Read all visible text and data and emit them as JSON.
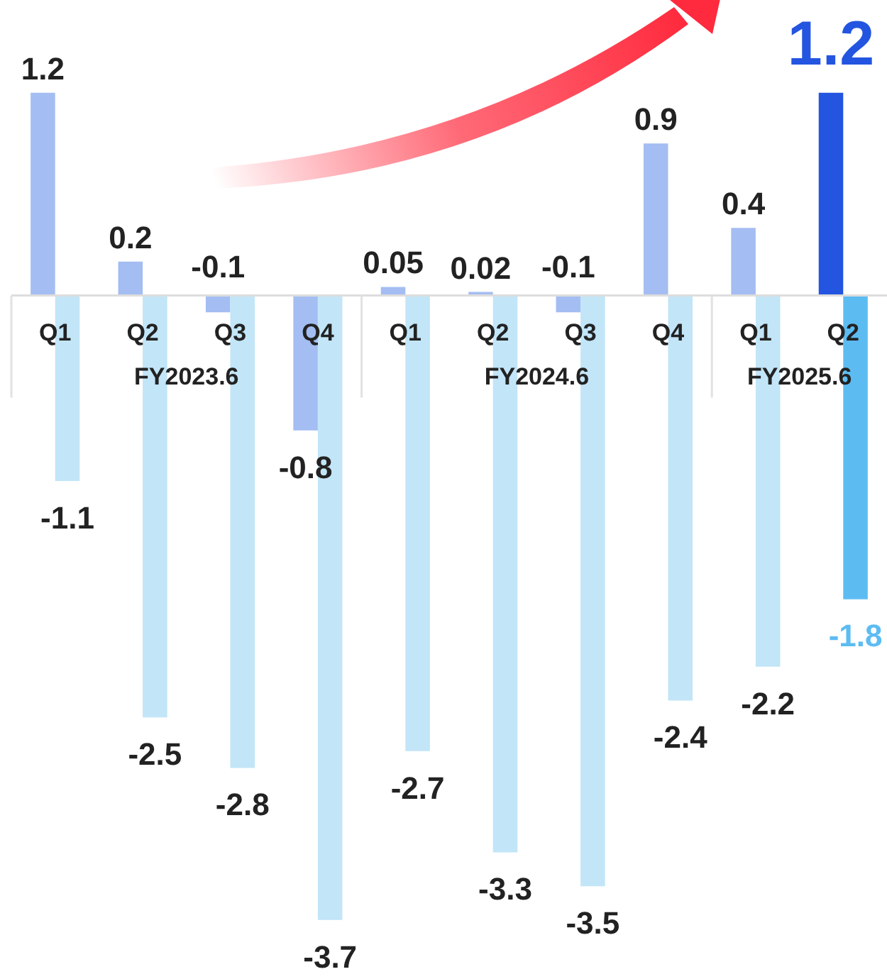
{
  "chart_data": {
    "type": "bar",
    "data_labels": true,
    "categories": [
      "Q1",
      "Q2",
      "Q3",
      "Q4",
      "Q1",
      "Q2",
      "Q3",
      "Q4",
      "Q1",
      "Q2"
    ],
    "annotations": [
      "FY2023.6",
      "FY2024.6",
      "FY2025.6"
    ],
    "series": [
      {
        "colors": [
          "#a4bdf2",
          "#a4bdf2",
          "#a4bdf2",
          "#a4bdf2",
          "#a4bdf2",
          "#a4bdf2",
          "#a4bdf2",
          "#a4bdf2",
          "#a4bdf2",
          "#2355e0"
        ],
        "values": [
          1.2,
          0.2,
          -0.1,
          -0.8,
          0.05,
          0.02,
          -0.1,
          0.9,
          0.4,
          1.2
        ]
      },
      {
        "colors": [
          "#c2e5f8",
          "#c2e5f8",
          "#c2e5f8",
          "#c2e5f8",
          "#c2e5f8",
          "#c2e5f8",
          "#c2e5f8",
          "#c2e5f8",
          "#c2e5f8",
          "#5cbcf2"
        ],
        "values": [
          -1.1,
          -2.5,
          -2.8,
          -3.7,
          -2.7,
          -3.3,
          -3.5,
          -2.4,
          -2.2,
          -1.8
        ]
      }
    ]
  }
}
